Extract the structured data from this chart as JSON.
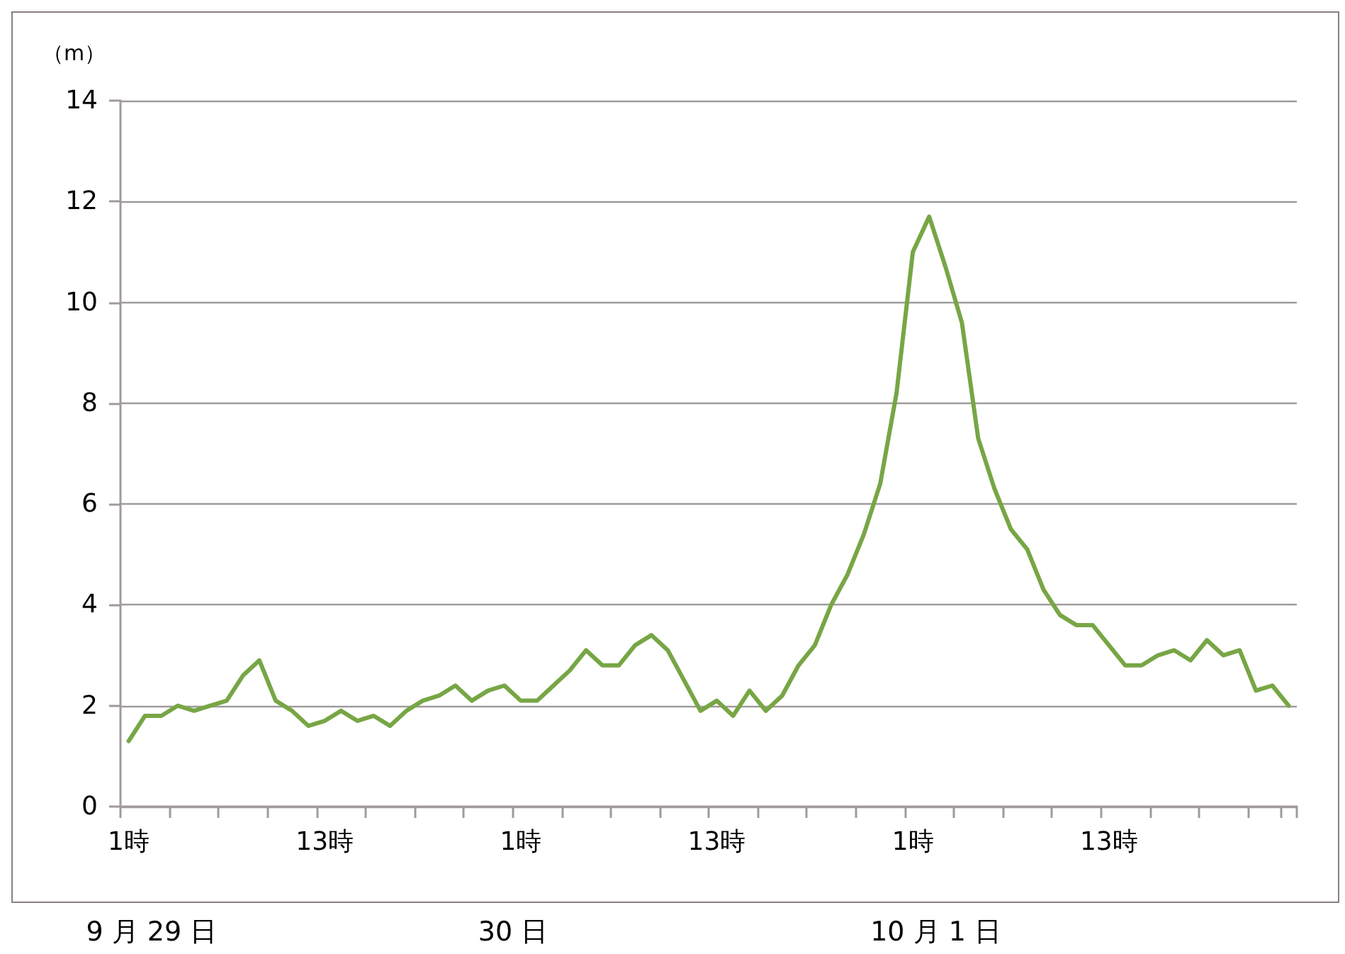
{
  "chart_data": {
    "type": "line",
    "ylabel": "（m）",
    "categories": [
      "1時",
      null,
      null,
      null,
      null,
      null,
      null,
      null,
      null,
      null,
      null,
      null,
      "13時",
      null,
      null,
      null,
      null,
      null,
      null,
      null,
      null,
      null,
      null,
      null,
      "1時",
      null,
      null,
      null,
      null,
      null,
      null,
      null,
      null,
      null,
      null,
      null,
      "13時",
      null,
      null,
      null,
      null,
      null,
      null,
      null,
      null,
      null,
      null,
      null,
      "1時",
      null,
      null,
      null,
      null,
      null,
      null,
      null,
      null,
      null,
      null,
      null,
      "13時",
      null,
      null,
      null,
      null,
      null,
      null,
      null,
      null,
      null,
      null,
      null
    ],
    "series": [
      {
        "color": "#77a645",
        "values": [
          1.3,
          1.8,
          1.8,
          2.0,
          1.9,
          2.0,
          2.1,
          2.6,
          2.9,
          2.1,
          1.9,
          1.6,
          1.7,
          1.9,
          1.7,
          1.8,
          1.6,
          1.9,
          2.1,
          2.2,
          2.4,
          2.1,
          2.3,
          2.4,
          2.1,
          2.1,
          2.4,
          2.7,
          3.1,
          2.8,
          2.8,
          3.2,
          3.4,
          3.1,
          2.5,
          1.9,
          2.1,
          1.8,
          2.3,
          1.9,
          2.2,
          2.8,
          3.2,
          4.0,
          4.6,
          5.4,
          6.4,
          8.2,
          11.0,
          11.7,
          10.7,
          9.6,
          7.3,
          6.3,
          5.5,
          5.1,
          4.3,
          3.8,
          3.6,
          3.6,
          3.2,
          2.8,
          2.8,
          3.0,
          3.1,
          2.9,
          3.3,
          3.0,
          3.1,
          2.3,
          2.4,
          2.0
        ]
      }
    ],
    "ylim": [
      0,
      14
    ],
    "yticks": [
      0,
      2,
      4,
      6,
      8,
      10,
      12,
      14
    ],
    "grid": "y",
    "marker": "none",
    "line_style": "solid",
    "annotations": [
      "9 月 29 日",
      "30 日",
      "10 月 1 日"
    ]
  }
}
